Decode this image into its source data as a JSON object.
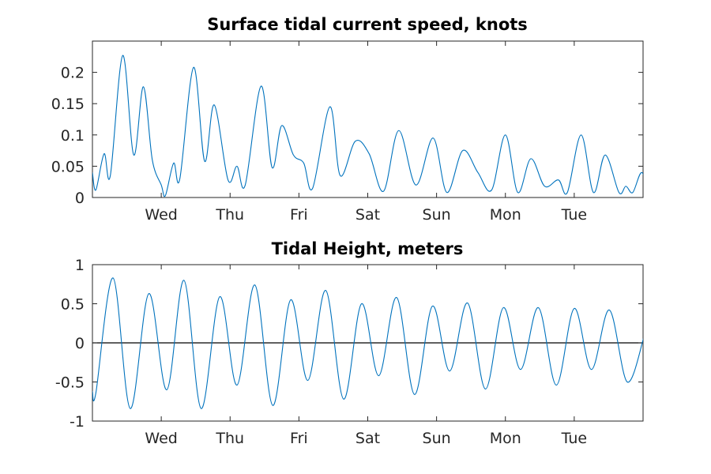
{
  "chart_data": [
    {
      "type": "line",
      "title": "Surface tidal current speed, knots",
      "xlabel": "",
      "ylabel": "",
      "x_tick_labels": [
        "Wed",
        "Thu",
        "Fri",
        "Sat",
        "Sun",
        "Mon",
        "Tue"
      ],
      "xlim_days": [
        0,
        8
      ],
      "ylim": [
        0,
        0.25
      ],
      "yticks": [
        0,
        0.05,
        0.1,
        0.15,
        0.2
      ],
      "y_tick_labels": [
        "0",
        "0.05",
        "0.1",
        "0.15",
        "0.2"
      ],
      "line_color": "#0072BD",
      "grid": false,
      "series": [
        {
          "points": [
            [
              0.0,
              0.04
            ],
            [
              0.05,
              0.012
            ],
            [
              0.17,
              0.07
            ],
            [
              0.26,
              0.035
            ],
            [
              0.44,
              0.227
            ],
            [
              0.6,
              0.068
            ],
            [
              0.74,
              0.177
            ],
            [
              0.87,
              0.06
            ],
            [
              1.0,
              0.02
            ],
            [
              1.06,
              0.003
            ],
            [
              1.18,
              0.055
            ],
            [
              1.27,
              0.03
            ],
            [
              1.47,
              0.208
            ],
            [
              1.63,
              0.058
            ],
            [
              1.77,
              0.148
            ],
            [
              1.97,
              0.028
            ],
            [
              2.1,
              0.05
            ],
            [
              2.22,
              0.02
            ],
            [
              2.45,
              0.178
            ],
            [
              2.61,
              0.048
            ],
            [
              2.75,
              0.115
            ],
            [
              2.92,
              0.068
            ],
            [
              3.07,
              0.055
            ],
            [
              3.2,
              0.015
            ],
            [
              3.45,
              0.145
            ],
            [
              3.6,
              0.035
            ],
            [
              3.82,
              0.09
            ],
            [
              4.02,
              0.07
            ],
            [
              4.23,
              0.01
            ],
            [
              4.45,
              0.107
            ],
            [
              4.7,
              0.02
            ],
            [
              4.95,
              0.095
            ],
            [
              5.15,
              0.008
            ],
            [
              5.38,
              0.075
            ],
            [
              5.6,
              0.04
            ],
            [
              5.8,
              0.012
            ],
            [
              6.0,
              0.1
            ],
            [
              6.18,
              0.008
            ],
            [
              6.37,
              0.062
            ],
            [
              6.57,
              0.018
            ],
            [
              6.77,
              0.028
            ],
            [
              6.9,
              0.008
            ],
            [
              7.1,
              0.1
            ],
            [
              7.28,
              0.008
            ],
            [
              7.45,
              0.068
            ],
            [
              7.65,
              0.008
            ],
            [
              7.75,
              0.018
            ],
            [
              7.85,
              0.008
            ],
            [
              7.98,
              0.04
            ],
            [
              8.1,
              0.008
            ],
            [
              8.2,
              0.06
            ]
          ]
        }
      ]
    },
    {
      "type": "line",
      "title": "Tidal Height, meters",
      "xlabel": "",
      "ylabel": "",
      "x_tick_labels": [
        "Wed",
        "Thu",
        "Fri",
        "Sat",
        "Sun",
        "Mon",
        "Tue"
      ],
      "xlim_days": [
        0,
        8
      ],
      "ylim": [
        -1,
        1
      ],
      "yticks": [
        -1,
        -0.5,
        0,
        0.5,
        1
      ],
      "y_tick_labels": [
        "-1",
        "-0.5",
        "0",
        "0.5",
        "1"
      ],
      "line_color": "#0072BD",
      "zero_line": true,
      "grid": false,
      "series": [
        {
          "points": [
            [
              0.0,
              -0.62
            ],
            [
              0.05,
              -0.64
            ],
            [
              0.3,
              0.83
            ],
            [
              0.55,
              -0.84
            ],
            [
              0.82,
              0.63
            ],
            [
              1.08,
              -0.6
            ],
            [
              1.33,
              0.8
            ],
            [
              1.58,
              -0.84
            ],
            [
              1.85,
              0.59
            ],
            [
              2.1,
              -0.54
            ],
            [
              2.36,
              0.74
            ],
            [
              2.62,
              -0.8
            ],
            [
              2.88,
              0.55
            ],
            [
              3.13,
              -0.48
            ],
            [
              3.39,
              0.67
            ],
            [
              3.65,
              -0.72
            ],
            [
              3.91,
              0.5
            ],
            [
              4.16,
              -0.42
            ],
            [
              4.42,
              0.58
            ],
            [
              4.68,
              -0.66
            ],
            [
              4.94,
              0.47
            ],
            [
              5.19,
              -0.36
            ],
            [
              5.45,
              0.51
            ],
            [
              5.71,
              -0.59
            ],
            [
              5.97,
              0.45
            ],
            [
              6.22,
              -0.34
            ],
            [
              6.48,
              0.45
            ],
            [
              6.74,
              -0.54
            ],
            [
              7.0,
              0.44
            ],
            [
              7.25,
              -0.34
            ],
            [
              7.51,
              0.42
            ],
            [
              7.77,
              -0.5
            ],
            [
              8.02,
              0.1
            ]
          ]
        }
      ]
    }
  ]
}
